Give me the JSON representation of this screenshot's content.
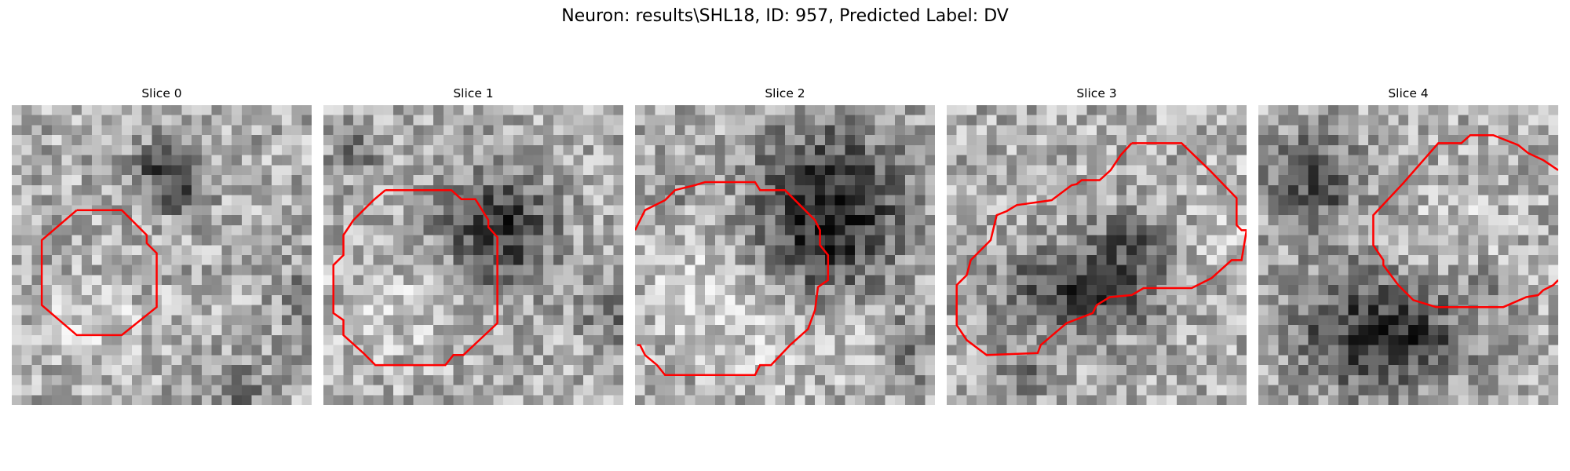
{
  "figure": {
    "title": "Neuron: results\\SHL18, ID: 957, Predicted Label: DV"
  },
  "panels": [
    {
      "title": "Slice 0",
      "contour_color": "#ff0000"
    },
    {
      "title": "Slice 1",
      "contour_color": "#ff0000"
    },
    {
      "title": "Slice 2",
      "contour_color": "#ff0000"
    },
    {
      "title": "Slice 3",
      "contour_color": "#ff0000"
    },
    {
      "title": "Slice 4",
      "contour_color": "#ff0000"
    }
  ],
  "colormap": "gray"
}
